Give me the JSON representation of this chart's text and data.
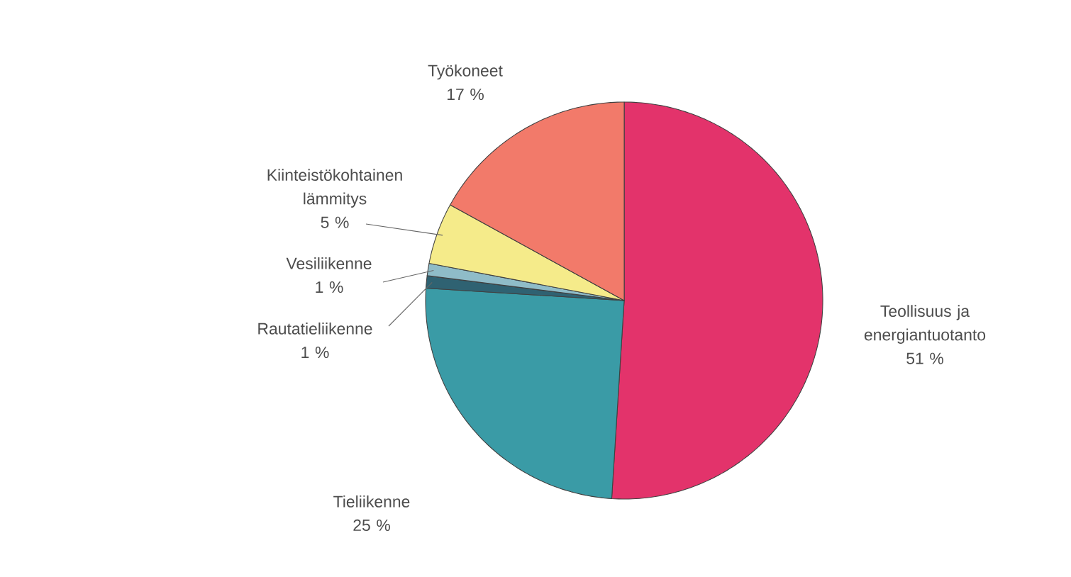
{
  "chart_data": {
    "type": "pie",
    "categories": [
      "Teollisuus ja energiantuotanto",
      "Tieliikenne",
      "Rautatieliikenne",
      "Vesiliikenne",
      "Kiinteistökohtainen lämmitys",
      "Työkoneet"
    ],
    "values": [
      51,
      25,
      1,
      1,
      5,
      17
    ],
    "value_labels": [
      "51 %",
      "25 %",
      "1 %",
      "1 %",
      "5 %",
      "17 %"
    ],
    "colors": [
      "#e3336b",
      "#3a9ba6",
      "#2f6272",
      "#8fbcc8",
      "#f5eb8a",
      "#f27a6a"
    ]
  }
}
